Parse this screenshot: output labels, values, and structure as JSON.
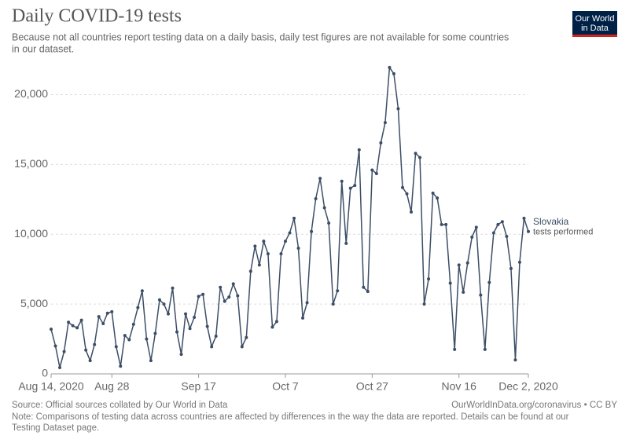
{
  "chart_data": {
    "type": "line",
    "title": "Daily COVID-19 tests",
    "subtitle": [
      "Because not all countries report testing data on a daily basis, daily test figures are not available for some countries",
      "in our dataset."
    ],
    "logo": [
      "Our World",
      "in Data"
    ],
    "source": "Source: Official sources collated by Our World in Data",
    "url": "OurWorldInData.org/coronavirus • CC BY",
    "note": [
      "Note: Comparisons of testing data across countries are affected by differences in the way the data are reported. Details can be found at our",
      "Testing Dataset page."
    ],
    "x": [
      "2020-08-14",
      "2020-08-15",
      "2020-08-16",
      "2020-08-17",
      "2020-08-18",
      "2020-08-19",
      "2020-08-20",
      "2020-08-21",
      "2020-08-22",
      "2020-08-23",
      "2020-08-24",
      "2020-08-25",
      "2020-08-26",
      "2020-08-27",
      "2020-08-28",
      "2020-08-29",
      "2020-08-30",
      "2020-08-31",
      "2020-09-01",
      "2020-09-02",
      "2020-09-03",
      "2020-09-04",
      "2020-09-05",
      "2020-09-06",
      "2020-09-07",
      "2020-09-08",
      "2020-09-09",
      "2020-09-10",
      "2020-09-11",
      "2020-09-12",
      "2020-09-13",
      "2020-09-14",
      "2020-09-15",
      "2020-09-16",
      "2020-09-17",
      "2020-09-18",
      "2020-09-19",
      "2020-09-20",
      "2020-09-21",
      "2020-09-22",
      "2020-09-23",
      "2020-09-24",
      "2020-09-25",
      "2020-09-26",
      "2020-09-27",
      "2020-09-28",
      "2020-09-29",
      "2020-09-30",
      "2020-10-01",
      "2020-10-02",
      "2020-10-03",
      "2020-10-04",
      "2020-10-05",
      "2020-10-06",
      "2020-10-07",
      "2020-10-08",
      "2020-10-09",
      "2020-10-10",
      "2020-10-11",
      "2020-10-12",
      "2020-10-13",
      "2020-10-14",
      "2020-10-15",
      "2020-10-16",
      "2020-10-17",
      "2020-10-18",
      "2020-10-19",
      "2020-10-20",
      "2020-10-21",
      "2020-10-22",
      "2020-10-23",
      "2020-10-24",
      "2020-10-25",
      "2020-10-26",
      "2020-10-27",
      "2020-10-28",
      "2020-10-29",
      "2020-10-30",
      "2020-10-31",
      "2020-11-01",
      "2020-11-02",
      "2020-11-03",
      "2020-11-04",
      "2020-11-05",
      "2020-11-06",
      "2020-11-07",
      "2020-11-08",
      "2020-11-09",
      "2020-11-10",
      "2020-11-11",
      "2020-11-12",
      "2020-11-13",
      "2020-11-14",
      "2020-11-15",
      "2020-11-16",
      "2020-11-17",
      "2020-11-18",
      "2020-11-19",
      "2020-11-20",
      "2020-11-21",
      "2020-11-22",
      "2020-11-23",
      "2020-11-24",
      "2020-11-25",
      "2020-11-26",
      "2020-11-27",
      "2020-11-28",
      "2020-11-29",
      "2020-11-30",
      "2020-12-01",
      "2020-12-02"
    ],
    "series": [
      {
        "name": "Slovakia",
        "unit_label": "tests performed",
        "color": "#3c4e66",
        "values": [
          3200,
          2000,
          450,
          1600,
          3700,
          3450,
          3300,
          3850,
          1700,
          950,
          2100,
          4100,
          3600,
          4350,
          4450,
          1950,
          550,
          2750,
          2450,
          3550,
          4750,
          5950,
          2500,
          950,
          2900,
          5300,
          5000,
          4300,
          6150,
          3000,
          1400,
          4300,
          3250,
          4050,
          5550,
          5700,
          3400,
          1950,
          2700,
          6200,
          5200,
          5500,
          6450,
          5600,
          1950,
          2600,
          7350,
          9150,
          7800,
          9500,
          8600,
          3350,
          3750,
          8600,
          9500,
          10100,
          11150,
          9000,
          4000,
          5100,
          10200,
          12550,
          14000,
          11900,
          10800,
          5000,
          5950,
          13800,
          9350,
          13300,
          13500,
          16050,
          6200,
          5900,
          14600,
          14350,
          16550,
          18000,
          21950,
          21500,
          19000,
          13350,
          12900,
          11600,
          15800,
          15500,
          5000,
          6800,
          12950,
          12600,
          10700,
          10700,
          6500,
          1750,
          7800,
          5850,
          7950,
          9800,
          10500,
          5650,
          1750,
          6550,
          10100,
          10700,
          10900,
          9850,
          7550,
          1000,
          8000,
          11150,
          10200
        ]
      }
    ],
    "xlim": [
      "2020-08-14",
      "2020-12-02"
    ],
    "xticks": [
      {
        "value": "2020-08-14",
        "label": "Aug 14, 2020"
      },
      {
        "value": "2020-08-28",
        "label": "Aug 28"
      },
      {
        "value": "2020-09-17",
        "label": "Sep 17"
      },
      {
        "value": "2020-10-07",
        "label": "Oct 7"
      },
      {
        "value": "2020-10-27",
        "label": "Oct 27"
      },
      {
        "value": "2020-11-16",
        "label": "Nov 16"
      },
      {
        "value": "2020-12-02",
        "label": "Dec 2, 2020"
      }
    ],
    "ylim": [
      0,
      22000
    ],
    "yticks": [
      0,
      {
        "value": 5000,
        "label": "5,000"
      },
      {
        "value": 10000,
        "label": "10,000"
      },
      {
        "value": 15000,
        "label": "15,000"
      },
      {
        "value": 20000,
        "label": "20,000"
      }
    ],
    "grid": true
  }
}
